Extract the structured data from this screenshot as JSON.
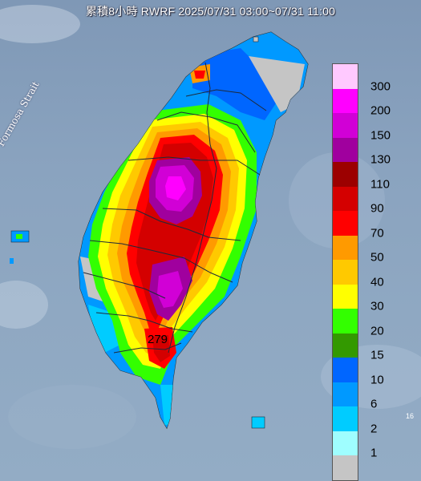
{
  "title": "累積8小時 RWRF 2025/07/31 03:00~07/31 11:00",
  "strait_label": "Formosa Strait",
  "max_value_label": "279",
  "corner_label": "16",
  "legend": {
    "levels": [
      {
        "label": "300",
        "color": "#ffc9ff"
      },
      {
        "label": "200",
        "color": "#ff00ff"
      },
      {
        "label": "150",
        "color": "#d100d6"
      },
      {
        "label": "130",
        "color": "#a0009e"
      },
      {
        "label": "110",
        "color": "#9c0000"
      },
      {
        "label": "90",
        "color": "#d40000"
      },
      {
        "label": "70",
        "color": "#ff0000"
      },
      {
        "label": "50",
        "color": "#ff9a00"
      },
      {
        "label": "40",
        "color": "#ffc900"
      },
      {
        "label": "30",
        "color": "#ffff00"
      },
      {
        "label": "20",
        "color": "#33ff00"
      },
      {
        "label": "15",
        "color": "#339900"
      },
      {
        "label": "10",
        "color": "#0066ff"
      },
      {
        "label": "6",
        "color": "#0099ff"
      },
      {
        "label": "2",
        "color": "#00ccff"
      },
      {
        "label": "1",
        "color": "#9ffeff"
      },
      {
        "label": "",
        "color": "#c5c5c5"
      }
    ]
  }
}
